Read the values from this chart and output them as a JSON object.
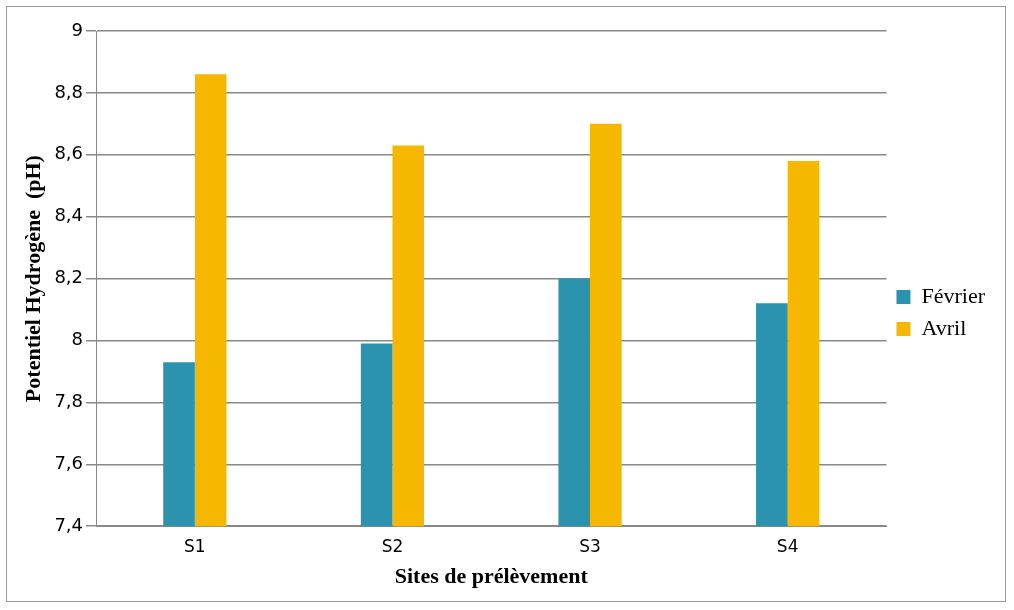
{
  "chart_data": {
    "type": "bar",
    "xlabel": "Sites de prélèvement",
    "ylabel": "Potentiel Hydrogène  (pH)",
    "categories": [
      "S1",
      "S2",
      "S3",
      "S4"
    ],
    "series": [
      {
        "name": "Février",
        "color": "#2b93ad",
        "values": [
          7.93,
          7.99,
          8.2,
          8.12
        ]
      },
      {
        "name": "Avril",
        "color": "#f6b700",
        "values": [
          8.86,
          8.63,
          8.7,
          8.58
        ]
      }
    ],
    "ylim": [
      7.4,
      9
    ],
    "yticks": [
      {
        "value": 7.4,
        "label": "7,4"
      },
      {
        "value": 7.6,
        "label": "7,6"
      },
      {
        "value": 7.8,
        "label": "7,8"
      },
      {
        "value": 8,
        "label": "8"
      },
      {
        "value": 8.2,
        "label": "8,2"
      },
      {
        "value": 8.4,
        "label": "8,4"
      },
      {
        "value": 8.6,
        "label": "8,6"
      },
      {
        "value": 8.8,
        "label": "8,8"
      },
      {
        "value": 9,
        "label": "9"
      }
    ],
    "grid": "y",
    "legend": "right"
  }
}
